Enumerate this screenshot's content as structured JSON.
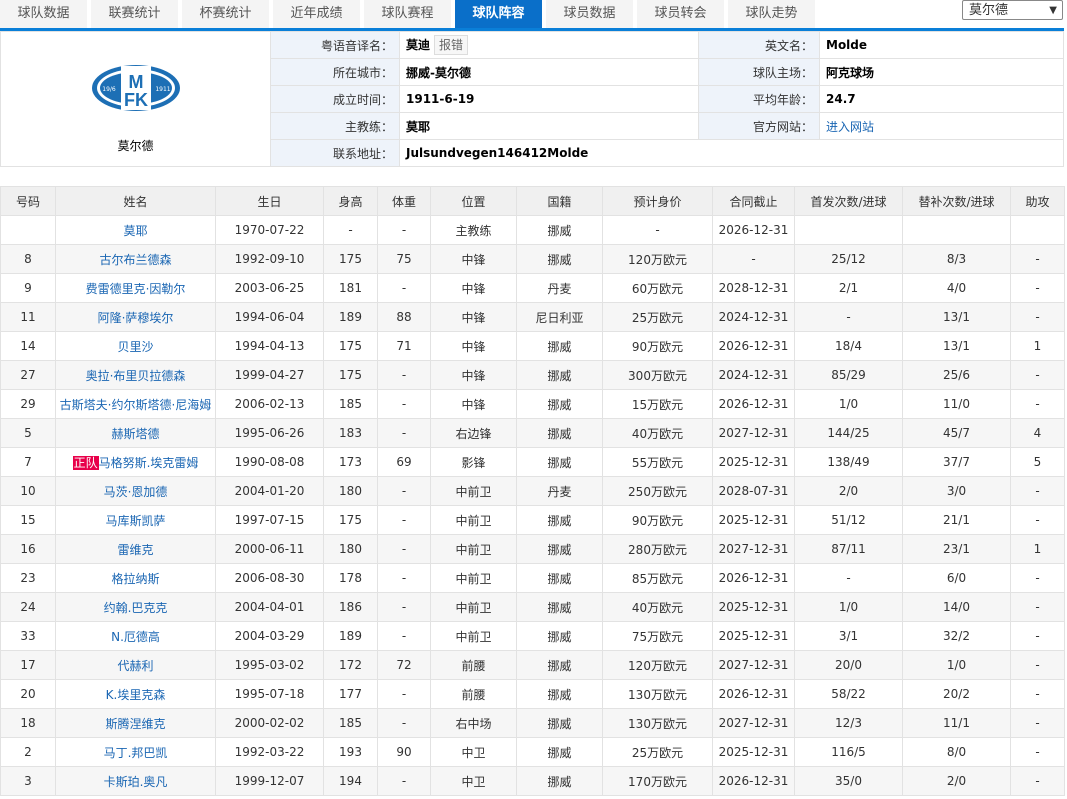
{
  "tabs": [
    "球队数据",
    "联赛统计",
    "杯赛统计",
    "近年成绩",
    "球队赛程",
    "球队阵容",
    "球员数据",
    "球员转会",
    "球队走势"
  ],
  "active_tab": "球队阵容",
  "team_select": "莫尔德",
  "team": {
    "name": "莫尔德",
    "logo_text": "MFK 1911",
    "fields": {
      "cantonese_label": "粤语音译名：",
      "cantonese": "莫迪",
      "report_error": "报错",
      "city_label": "所在城市：",
      "city": "挪威-莫尔德",
      "founded_label": "成立时间：",
      "founded": "1911-6-19",
      "coach_label": "主教练：",
      "coach": "莫耶",
      "address_label": "联系地址：",
      "address": "Julsundvegen146412Molde",
      "english_label": "英文名：",
      "english": "Molde",
      "stadium_label": "球队主场：",
      "stadium": "阿克球场",
      "avg_age_label": "平均年龄：",
      "avg_age": "24.7",
      "website_label": "官方网站：",
      "website": "进入网站"
    }
  },
  "roster": {
    "headers": [
      "号码",
      "姓名",
      "生日",
      "身高",
      "体重",
      "位置",
      "国籍",
      "预计身价",
      "合同截止",
      "首发次数/进球",
      "替补次数/进球",
      "助攻"
    ],
    "rows": [
      [
        "",
        "莫耶",
        "1970-07-22",
        "-",
        "-",
        "主教练",
        "挪威",
        "-",
        "2026-12-31",
        "",
        "",
        ""
      ],
      [
        "8",
        "古尔布兰德森",
        "1992-09-10",
        "175",
        "75",
        "中锋",
        "挪威",
        "120万欧元",
        "-",
        "25/12",
        "8/3",
        "-"
      ],
      [
        "9",
        "费雷德里克·因勒尔",
        "2003-06-25",
        "181",
        "-",
        "中锋",
        "丹麦",
        "60万欧元",
        "2028-12-31",
        "2/1",
        "4/0",
        "-"
      ],
      [
        "11",
        "阿隆·萨穆埃尔",
        "1994-06-04",
        "189",
        "88",
        "中锋",
        "尼日利亚",
        "25万欧元",
        "2024-12-31",
        "-",
        "13/1",
        "-"
      ],
      [
        "14",
        "贝里沙",
        "1994-04-13",
        "175",
        "71",
        "中锋",
        "挪威",
        "90万欧元",
        "2026-12-31",
        "18/4",
        "13/1",
        "1"
      ],
      [
        "27",
        "奥拉·布里贝拉德森",
        "1999-04-27",
        "175",
        "-",
        "中锋",
        "挪威",
        "300万欧元",
        "2024-12-31",
        "85/29",
        "25/6",
        "-"
      ],
      [
        "29",
        "古斯塔夫·约尔斯塔德·尼海姆",
        "2006-02-13",
        "185",
        "-",
        "中锋",
        "挪威",
        "15万欧元",
        "2026-12-31",
        "1/0",
        "11/0",
        "-"
      ],
      [
        "5",
        "赫斯塔德",
        "1995-06-26",
        "183",
        "-",
        "右边锋",
        "挪威",
        "40万欧元",
        "2027-12-31",
        "144/25",
        "45/7",
        "4"
      ],
      [
        "7",
        "马格努斯.埃克雷姆",
        "1990-08-08",
        "173",
        "69",
        "影锋",
        "挪威",
        "55万欧元",
        "2025-12-31",
        "138/49",
        "37/7",
        "5"
      ],
      [
        "10",
        "马茨·恩加德",
        "2004-01-20",
        "180",
        "-",
        "中前卫",
        "丹麦",
        "250万欧元",
        "2028-07-31",
        "2/0",
        "3/0",
        "-"
      ],
      [
        "15",
        "马库斯凯萨",
        "1997-07-15",
        "175",
        "-",
        "中前卫",
        "挪威",
        "90万欧元",
        "2025-12-31",
        "51/12",
        "21/1",
        "-"
      ],
      [
        "16",
        "雷维克",
        "2000-06-11",
        "180",
        "-",
        "中前卫",
        "挪威",
        "280万欧元",
        "2027-12-31",
        "87/11",
        "23/1",
        "1"
      ],
      [
        "23",
        "格拉纳斯",
        "2006-08-30",
        "178",
        "-",
        "中前卫",
        "挪威",
        "85万欧元",
        "2026-12-31",
        "-",
        "6/0",
        "-"
      ],
      [
        "24",
        "约翰.巴克克",
        "2004-04-01",
        "186",
        "-",
        "中前卫",
        "挪威",
        "40万欧元",
        "2025-12-31",
        "1/0",
        "14/0",
        "-"
      ],
      [
        "33",
        "N.厄德高",
        "2004-03-29",
        "189",
        "-",
        "中前卫",
        "挪威",
        "75万欧元",
        "2025-12-31",
        "3/1",
        "32/2",
        "-"
      ],
      [
        "17",
        "代赫利",
        "1995-03-02",
        "172",
        "72",
        "前腰",
        "挪威",
        "120万欧元",
        "2027-12-31",
        "20/0",
        "1/0",
        "-"
      ],
      [
        "20",
        "K.埃里克森",
        "1995-07-18",
        "177",
        "-",
        "前腰",
        "挪威",
        "130万欧元",
        "2026-12-31",
        "58/22",
        "20/2",
        "-"
      ],
      [
        "18",
        "斯腾涅维克",
        "2000-02-02",
        "185",
        "-",
        "右中场",
        "挪威",
        "130万欧元",
        "2027-12-31",
        "12/3",
        "11/1",
        "-"
      ],
      [
        "2",
        "马丁.邦巴凯",
        "1992-03-22",
        "193",
        "90",
        "中卫",
        "挪威",
        "25万欧元",
        "2025-12-31",
        "116/5",
        "8/0",
        "-"
      ],
      [
        "3",
        "卡斯珀.奥凡",
        "1999-12-07",
        "194",
        "-",
        "中卫",
        "挪威",
        "170万欧元",
        "2026-12-31",
        "35/0",
        "2/0",
        "-"
      ]
    ],
    "captain_tag": "正队",
    "captain_row": 8
  },
  "colors": {
    "accent": "#0a6fc9",
    "captain_tag": "#e8004a",
    "link": "#1a66b3"
  }
}
